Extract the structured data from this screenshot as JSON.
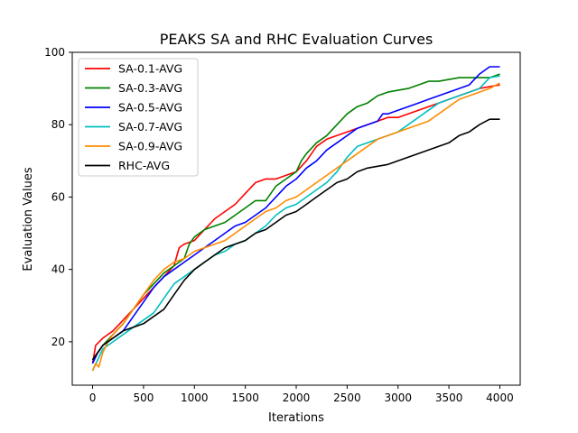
{
  "chart_data": {
    "type": "line",
    "title": "PEAKS SA and RHC Evaluation Curves",
    "xlabel": "Iterations",
    "ylabel": "Evaluation Values",
    "xlim": [
      -200,
      4200
    ],
    "ylim": [
      8,
      100
    ],
    "xticks": [
      0,
      500,
      1000,
      1500,
      2000,
      2500,
      3000,
      3500,
      4000
    ],
    "yticks": [
      20,
      40,
      60,
      80,
      100
    ],
    "grid": false,
    "legend_position": "top-left",
    "series": [
      {
        "name": "SA-0.1-AVG",
        "color": "#ff0000",
        "points": [
          [
            0,
            14
          ],
          [
            30,
            19
          ],
          [
            100,
            21
          ],
          [
            200,
            23
          ],
          [
            300,
            26
          ],
          [
            400,
            29
          ],
          [
            500,
            32
          ],
          [
            600,
            35
          ],
          [
            700,
            38
          ],
          [
            800,
            41
          ],
          [
            850,
            46
          ],
          [
            900,
            47
          ],
          [
            1000,
            48
          ],
          [
            1100,
            51
          ],
          [
            1200,
            54
          ],
          [
            1300,
            56
          ],
          [
            1400,
            58
          ],
          [
            1500,
            61
          ],
          [
            1600,
            64
          ],
          [
            1700,
            65
          ],
          [
            1800,
            65
          ],
          [
            1900,
            66
          ],
          [
            2000,
            67
          ],
          [
            2100,
            70
          ],
          [
            2200,
            74
          ],
          [
            2300,
            76
          ],
          [
            2400,
            77
          ],
          [
            2500,
            78
          ],
          [
            2600,
            79
          ],
          [
            2700,
            80
          ],
          [
            2800,
            81
          ],
          [
            2900,
            82
          ],
          [
            3000,
            82
          ],
          [
            3100,
            83
          ],
          [
            3200,
            84
          ],
          [
            3300,
            85
          ],
          [
            3400,
            86
          ],
          [
            3500,
            87
          ],
          [
            3600,
            88
          ],
          [
            3700,
            89
          ],
          [
            3800,
            90
          ],
          [
            3900,
            90.5
          ],
          [
            4000,
            91
          ]
        ]
      },
      {
        "name": "SA-0.3-AVG",
        "color": "#008000",
        "points": [
          [
            0,
            15
          ],
          [
            50,
            17
          ],
          [
            100,
            19
          ],
          [
            200,
            22
          ],
          [
            300,
            25
          ],
          [
            400,
            29
          ],
          [
            500,
            33
          ],
          [
            600,
            36
          ],
          [
            700,
            39
          ],
          [
            800,
            41
          ],
          [
            900,
            43
          ],
          [
            950,
            47
          ],
          [
            1000,
            49
          ],
          [
            1100,
            51
          ],
          [
            1200,
            52
          ],
          [
            1300,
            53
          ],
          [
            1400,
            55
          ],
          [
            1500,
            57
          ],
          [
            1600,
            59
          ],
          [
            1700,
            59
          ],
          [
            1800,
            63
          ],
          [
            1900,
            65
          ],
          [
            2000,
            67
          ],
          [
            2050,
            70
          ],
          [
            2100,
            72
          ],
          [
            2200,
            75
          ],
          [
            2300,
            77
          ],
          [
            2400,
            80
          ],
          [
            2500,
            83
          ],
          [
            2600,
            85
          ],
          [
            2700,
            86
          ],
          [
            2800,
            88
          ],
          [
            2900,
            89
          ],
          [
            3000,
            89.5
          ],
          [
            3100,
            90
          ],
          [
            3200,
            91
          ],
          [
            3300,
            92
          ],
          [
            3400,
            92
          ],
          [
            3500,
            92.5
          ],
          [
            3600,
            93
          ],
          [
            3700,
            93
          ],
          [
            3800,
            93
          ],
          [
            3900,
            93
          ],
          [
            4000,
            94
          ]
        ]
      },
      {
        "name": "SA-0.5-AVG",
        "color": "#0000ff",
        "points": [
          [
            0,
            14
          ],
          [
            50,
            17
          ],
          [
            100,
            19
          ],
          [
            200,
            21
          ],
          [
            300,
            23
          ],
          [
            400,
            27
          ],
          [
            500,
            31
          ],
          [
            600,
            35
          ],
          [
            700,
            38
          ],
          [
            800,
            40
          ],
          [
            900,
            42
          ],
          [
            1000,
            44
          ],
          [
            1100,
            46
          ],
          [
            1200,
            48
          ],
          [
            1300,
            50
          ],
          [
            1400,
            52
          ],
          [
            1500,
            53
          ],
          [
            1600,
            55
          ],
          [
            1700,
            57
          ],
          [
            1800,
            60
          ],
          [
            1900,
            63
          ],
          [
            2000,
            65
          ],
          [
            2100,
            68
          ],
          [
            2200,
            70
          ],
          [
            2300,
            73
          ],
          [
            2400,
            75
          ],
          [
            2500,
            77
          ],
          [
            2600,
            79
          ],
          [
            2700,
            80
          ],
          [
            2800,
            81
          ],
          [
            2850,
            83
          ],
          [
            2900,
            83
          ],
          [
            3000,
            84
          ],
          [
            3100,
            85
          ],
          [
            3200,
            86
          ],
          [
            3300,
            87
          ],
          [
            3400,
            88
          ],
          [
            3500,
            89
          ],
          [
            3600,
            90
          ],
          [
            3700,
            91
          ],
          [
            3800,
            94
          ],
          [
            3900,
            96
          ],
          [
            4000,
            96
          ]
        ]
      },
      {
        "name": "SA-0.7-AVG",
        "color": "#00bfbf",
        "points": [
          [
            0,
            12
          ],
          [
            50,
            15
          ],
          [
            100,
            18
          ],
          [
            200,
            20
          ],
          [
            300,
            22
          ],
          [
            400,
            24
          ],
          [
            500,
            26
          ],
          [
            600,
            28
          ],
          [
            700,
            32
          ],
          [
            800,
            36
          ],
          [
            900,
            38
          ],
          [
            1000,
            40
          ],
          [
            1100,
            42
          ],
          [
            1200,
            44
          ],
          [
            1300,
            45
          ],
          [
            1400,
            47
          ],
          [
            1500,
            48
          ],
          [
            1600,
            50
          ],
          [
            1700,
            52
          ],
          [
            1800,
            55
          ],
          [
            1900,
            57
          ],
          [
            2000,
            58
          ],
          [
            2100,
            60
          ],
          [
            2200,
            62
          ],
          [
            2300,
            64
          ],
          [
            2400,
            67
          ],
          [
            2500,
            71
          ],
          [
            2600,
            74
          ],
          [
            2700,
            75
          ],
          [
            2800,
            76
          ],
          [
            2900,
            77
          ],
          [
            3000,
            78
          ],
          [
            3100,
            80
          ],
          [
            3200,
            82
          ],
          [
            3300,
            84
          ],
          [
            3400,
            86
          ],
          [
            3500,
            87
          ],
          [
            3600,
            88
          ],
          [
            3700,
            89
          ],
          [
            3800,
            90
          ],
          [
            3900,
            93
          ],
          [
            4000,
            93.5
          ]
        ]
      },
      {
        "name": "SA-0.9-AVG",
        "color": "#ff8c00",
        "points": [
          [
            0,
            12
          ],
          [
            30,
            14
          ],
          [
            60,
            13
          ],
          [
            100,
            17
          ],
          [
            150,
            20
          ],
          [
            200,
            22
          ],
          [
            300,
            25
          ],
          [
            400,
            29
          ],
          [
            500,
            33
          ],
          [
            600,
            37
          ],
          [
            700,
            40
          ],
          [
            800,
            42
          ],
          [
            900,
            43
          ],
          [
            1000,
            45
          ],
          [
            1100,
            46
          ],
          [
            1200,
            47
          ],
          [
            1300,
            48
          ],
          [
            1400,
            50
          ],
          [
            1500,
            52
          ],
          [
            1600,
            54
          ],
          [
            1700,
            56
          ],
          [
            1800,
            57
          ],
          [
            1900,
            59
          ],
          [
            2000,
            60
          ],
          [
            2100,
            62
          ],
          [
            2200,
            64
          ],
          [
            2300,
            66
          ],
          [
            2400,
            68
          ],
          [
            2500,
            70
          ],
          [
            2600,
            72
          ],
          [
            2700,
            74
          ],
          [
            2800,
            76
          ],
          [
            2900,
            77
          ],
          [
            3000,
            78
          ],
          [
            3100,
            79
          ],
          [
            3200,
            80
          ],
          [
            3300,
            81
          ],
          [
            3400,
            83
          ],
          [
            3500,
            85
          ],
          [
            3600,
            87
          ],
          [
            3700,
            88
          ],
          [
            3800,
            89
          ],
          [
            3900,
            90
          ],
          [
            4000,
            91.5
          ]
        ]
      },
      {
        "name": "RHC-AVG",
        "color": "#000000",
        "points": [
          [
            0,
            15
          ],
          [
            50,
            17
          ],
          [
            100,
            19
          ],
          [
            200,
            21
          ],
          [
            300,
            23
          ],
          [
            400,
            24
          ],
          [
            500,
            25
          ],
          [
            600,
            27
          ],
          [
            700,
            29
          ],
          [
            800,
            33
          ],
          [
            900,
            37
          ],
          [
            1000,
            40
          ],
          [
            1100,
            42
          ],
          [
            1200,
            44
          ],
          [
            1300,
            46
          ],
          [
            1400,
            47
          ],
          [
            1500,
            48
          ],
          [
            1600,
            50
          ],
          [
            1700,
            51
          ],
          [
            1800,
            53
          ],
          [
            1900,
            55
          ],
          [
            2000,
            56
          ],
          [
            2100,
            58
          ],
          [
            2200,
            60
          ],
          [
            2300,
            62
          ],
          [
            2400,
            64
          ],
          [
            2500,
            65
          ],
          [
            2600,
            67
          ],
          [
            2700,
            68
          ],
          [
            2800,
            68.5
          ],
          [
            2900,
            69
          ],
          [
            3000,
            70
          ],
          [
            3100,
            71
          ],
          [
            3200,
            72
          ],
          [
            3300,
            73
          ],
          [
            3400,
            74
          ],
          [
            3500,
            75
          ],
          [
            3600,
            77
          ],
          [
            3700,
            78
          ],
          [
            3800,
            80
          ],
          [
            3900,
            81.5
          ],
          [
            4000,
            81.5
          ]
        ]
      }
    ]
  }
}
